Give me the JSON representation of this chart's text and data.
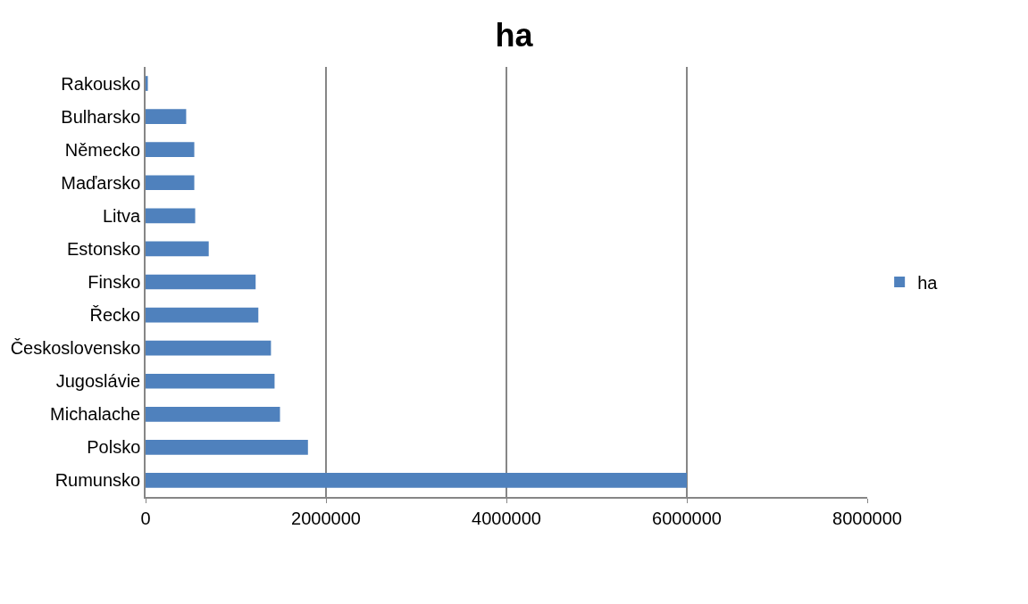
{
  "chart_data": {
    "type": "bar",
    "orientation": "horizontal",
    "title": "ha",
    "categories": [
      "Rakousko",
      "Bulharsko",
      "Německo",
      "Maďarsko",
      "Litva",
      "Estonsko",
      "Finsko",
      "Řecko",
      "Československo",
      "Jugoslávie",
      "Michalache",
      "Polsko",
      "Rumunsko"
    ],
    "series": [
      {
        "name": "ha",
        "color": "#4f81bd",
        "values": [
          25000,
          450000,
          540000,
          540000,
          550000,
          700000,
          1220000,
          1250000,
          1390000,
          1430000,
          1490000,
          1800000,
          6000000
        ]
      }
    ],
    "xlim": [
      0,
      8000000
    ],
    "xticks": [
      0,
      2000000,
      4000000,
      6000000,
      8000000
    ],
    "grid": "x",
    "legend": "right"
  }
}
